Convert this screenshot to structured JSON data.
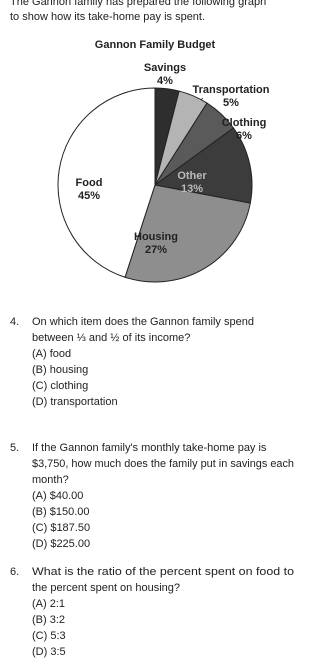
{
  "intro": [
    "The Gannon family has prepared the following graph",
    "to show how its take-home pay is spent."
  ],
  "chart_data": {
    "type": "pie",
    "title": "Gannon Family Budget",
    "categories": [
      "Savings",
      "Transportation",
      "Clothing",
      "Other",
      "Housing",
      "Food"
    ],
    "values": [
      4,
      5,
      6,
      13,
      27,
      45
    ],
    "value_labels": [
      "4%",
      "5%",
      "6%",
      "13%",
      "27%",
      "45%"
    ],
    "colors": [
      "#2e2e2e",
      "#b4b4b4",
      "#5a5a5a",
      "#3c3c3c",
      "#8e8e8e",
      "#ffffff"
    ]
  },
  "questions": [
    {
      "number": "4.",
      "lines": [
        "On which item does the Gannon family spend",
        "between ⅓ and ½ of its income?"
      ],
      "options": [
        "(A) food",
        "(B) housing",
        "(C) clothing",
        "(D) transportation"
      ]
    },
    {
      "number": "5.",
      "lines": [
        "If the Gannon family's monthly take-home pay is",
        "$3,750, how much does the family put in savings each",
        "month?"
      ],
      "options": [
        "(A) $40.00",
        "(B) $150.00",
        "(C) $187.50",
        "(D) $225.00"
      ]
    },
    {
      "number": "6.",
      "lines": [
        "What is the ratio of the percent spent on food to",
        "the percent spent on housing?"
      ],
      "options": [
        "(A) 2:1",
        "(B) 3:2",
        "(C) 5:3",
        "(D) 3:5"
      ]
    }
  ]
}
